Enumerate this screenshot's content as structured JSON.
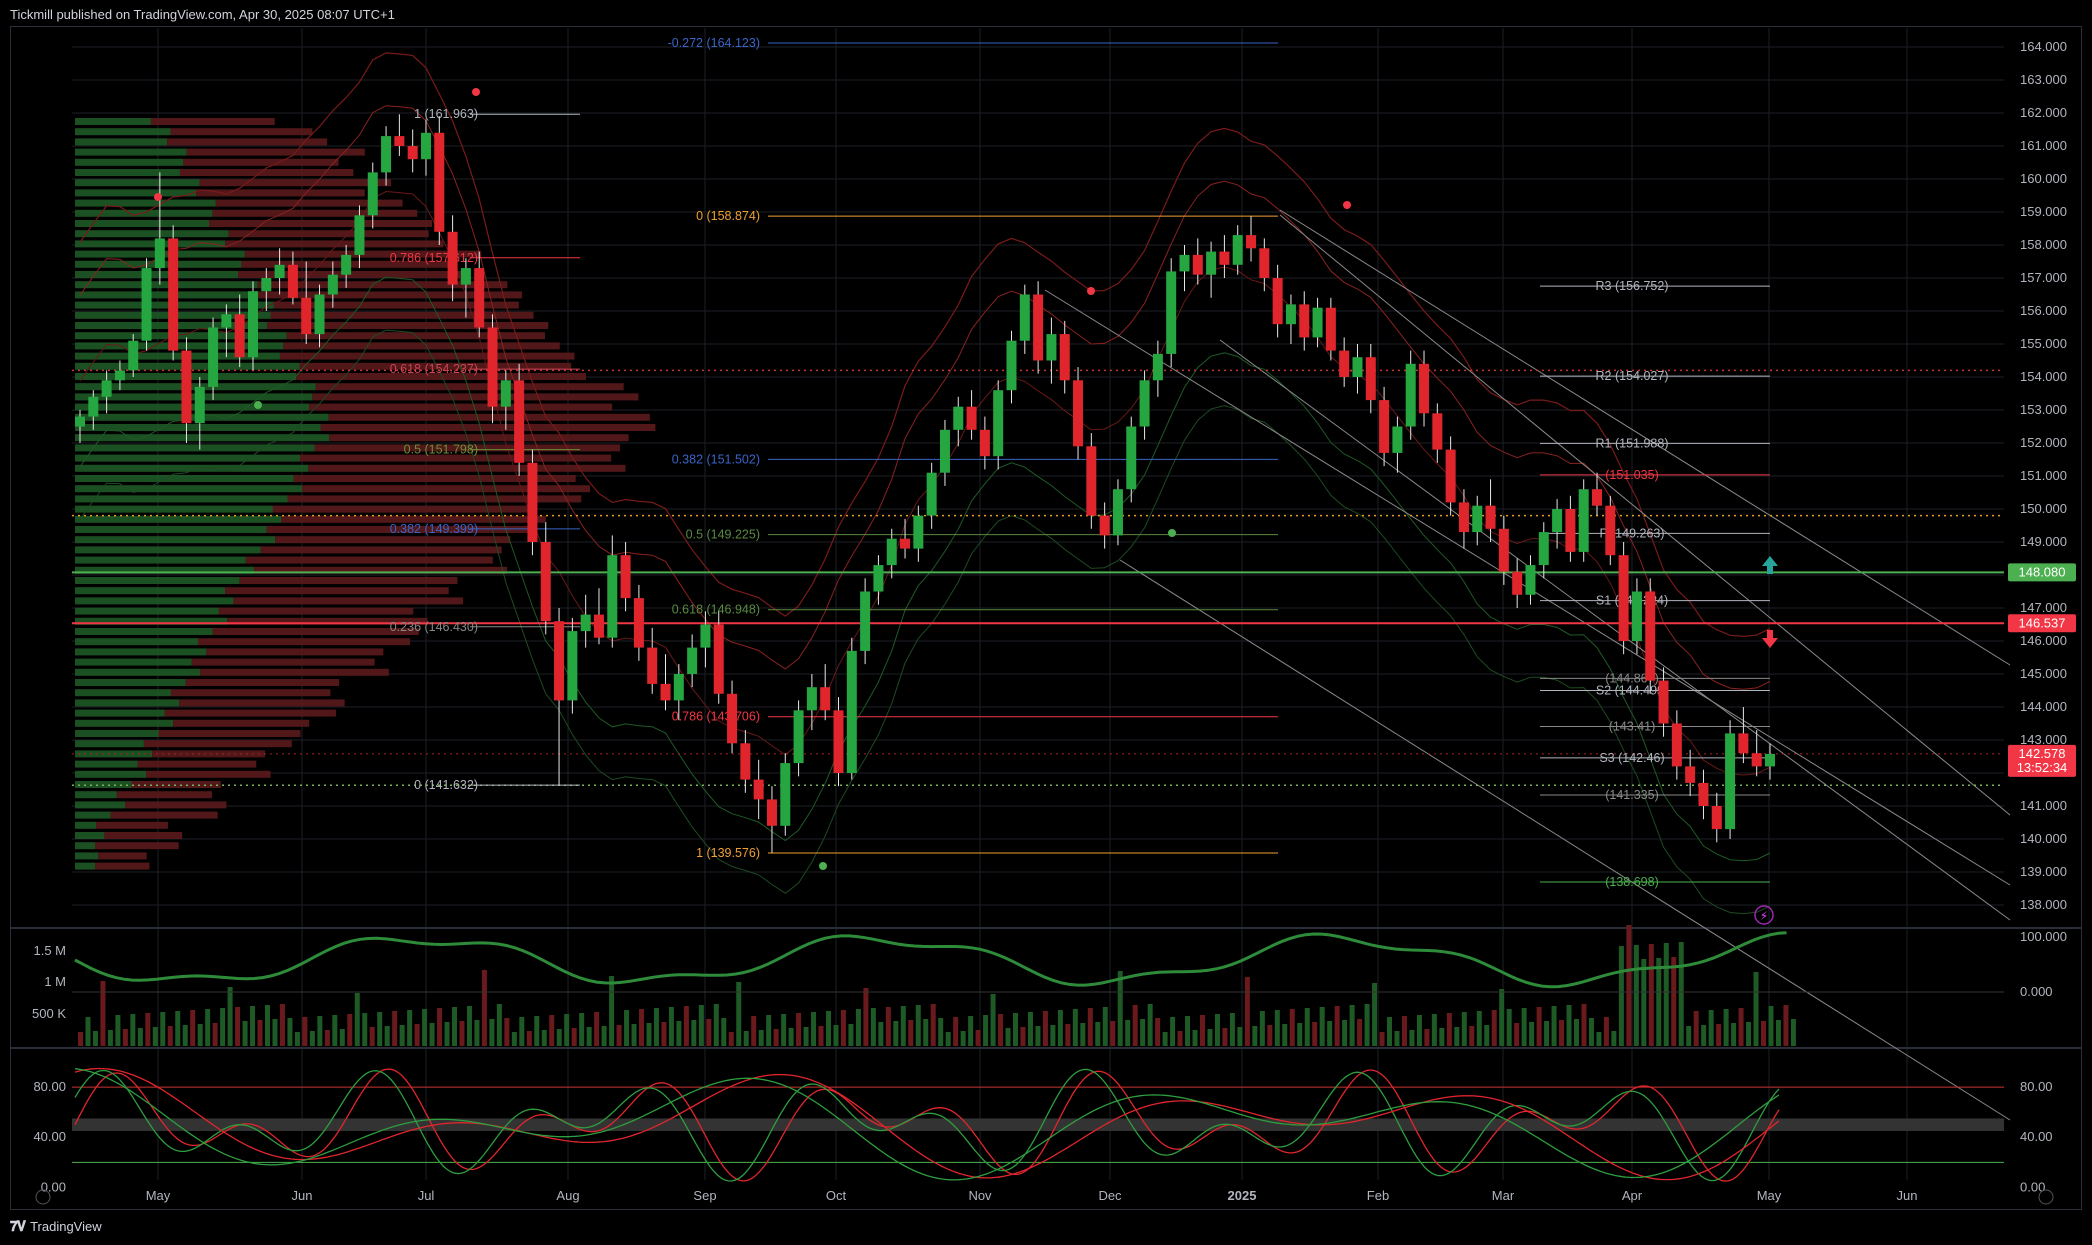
{
  "header": {
    "text": "Tickmill published on TradingView.com, Apr 30, 2025 08:07 UTC+1"
  },
  "footer": {
    "brand": "TradingView",
    "logo": "tv-logo-icon"
  },
  "colors": {
    "up": "#26a641",
    "down": "#e0262c",
    "bg": "#000000",
    "grid": "#1c1f26",
    "green_line": "#4caf50",
    "red_line": "#f23645",
    "orange": "#f0a030",
    "blue": "#3a64c8"
  },
  "chart_data": {
    "type": "candlestick",
    "price_axis": {
      "min": 138.0,
      "max": 164.0,
      "ticks": [
        "164.000",
        "163.000",
        "162.000",
        "161.000",
        "160.000",
        "159.000",
        "158.000",
        "157.000",
        "156.000",
        "155.000",
        "154.000",
        "153.000",
        "152.000",
        "151.000",
        "150.000",
        "149.000",
        "148.000",
        "147.000",
        "146.000",
        "145.000",
        "144.000",
        "143.000",
        "141.000",
        "140.000",
        "139.000",
        "138.000"
      ]
    },
    "time_axis": {
      "labels": [
        "May",
        "Jun",
        "Jul",
        "Aug",
        "Sep",
        "Oct",
        "Nov",
        "Dec",
        "2025",
        "Feb",
        "Mar",
        "Apr",
        "May",
        "Jun"
      ]
    },
    "price_tags": [
      {
        "value": "148.080",
        "price": 148.08,
        "color": "#4caf50"
      },
      {
        "value": "146.537",
        "price": 146.537,
        "color": "#f23645"
      },
      {
        "value": "142.578",
        "sub": "13:52:34",
        "price": 142.578,
        "color": "#f23645"
      }
    ],
    "fib_left": [
      {
        "label": "1 (161.963)",
        "price": 161.963
      },
      {
        "label": "0.786 (157.612)",
        "price": 157.612
      },
      {
        "label": "0.618 (154.237)",
        "price": 154.237
      },
      {
        "label": "0.5 (151.798)",
        "price": 151.798
      },
      {
        "label": "0.382 (149.399)",
        "price": 149.399
      },
      {
        "label": "0.236 (146.430)",
        "price": 146.43
      },
      {
        "label": "0 (141.632)",
        "price": 141.632
      }
    ],
    "fib_mid": [
      {
        "label": "-0.272 (164.123)",
        "price": 164.123
      },
      {
        "label": "0 (158.874)",
        "price": 158.874
      },
      {
        "label": "0.382 (151.502)",
        "price": 151.502
      },
      {
        "label": "0.5 (149.225)",
        "price": 149.225
      },
      {
        "label": "0.618 (146.948)",
        "price": 146.948
      },
      {
        "label": "0.786 (143.706)",
        "price": 143.706
      },
      {
        "label": "1 (139.576)",
        "price": 139.576
      }
    ],
    "pivots": [
      {
        "label": "R3 (156.752)",
        "price": 156.752
      },
      {
        "label": "R2 (154.027)",
        "price": 154.027
      },
      {
        "label": "R1 (151.988)",
        "price": 151.988
      },
      {
        "label": "(151.035)",
        "price": 151.035
      },
      {
        "label": "P (149.263)",
        "price": 149.263
      },
      {
        "label": "S1 (147.224)",
        "price": 147.224
      },
      {
        "label": "(144.867)",
        "price": 144.867
      },
      {
        "label": "S2 (144.499)",
        "price": 144.499
      },
      {
        "label": "(143.41)",
        "price": 143.41
      },
      {
        "label": "S3 (142.46)",
        "price": 142.46
      },
      {
        "label": "(141.335)",
        "price": 141.335
      },
      {
        "label": "(138.698)",
        "price": 138.698
      }
    ],
    "candles": [
      {
        "o": 152.5,
        "h": 153.0,
        "l": 152.0,
        "c": 152.8
      },
      {
        "o": 152.8,
        "h": 153.6,
        "l": 152.4,
        "c": 153.4
      },
      {
        "o": 153.4,
        "h": 154.2,
        "l": 152.9,
        "c": 153.9
      },
      {
        "o": 153.9,
        "h": 154.5,
        "l": 153.6,
        "c": 154.2
      },
      {
        "o": 154.2,
        "h": 155.3,
        "l": 154.0,
        "c": 155.1
      },
      {
        "o": 155.1,
        "h": 157.6,
        "l": 154.8,
        "c": 157.3
      },
      {
        "o": 157.3,
        "h": 160.2,
        "l": 156.8,
        "c": 158.2
      },
      {
        "o": 158.2,
        "h": 158.6,
        "l": 154.5,
        "c": 154.8
      },
      {
        "o": 154.8,
        "h": 155.2,
        "l": 152.0,
        "c": 152.6
      },
      {
        "o": 152.6,
        "h": 154.0,
        "l": 151.8,
        "c": 153.7
      },
      {
        "o": 153.7,
        "h": 155.8,
        "l": 153.3,
        "c": 155.5
      },
      {
        "o": 155.5,
        "h": 156.2,
        "l": 154.6,
        "c": 155.9
      },
      {
        "o": 155.9,
        "h": 156.5,
        "l": 154.3,
        "c": 154.6
      },
      {
        "o": 154.6,
        "h": 156.9,
        "l": 154.2,
        "c": 156.6
      },
      {
        "o": 156.6,
        "h": 157.3,
        "l": 156.0,
        "c": 157.0
      },
      {
        "o": 157.0,
        "h": 157.9,
        "l": 156.5,
        "c": 157.4
      },
      {
        "o": 157.4,
        "h": 157.8,
        "l": 156.2,
        "c": 156.4
      },
      {
        "o": 156.4,
        "h": 157.5,
        "l": 155.0,
        "c": 155.3
      },
      {
        "o": 155.3,
        "h": 156.8,
        "l": 154.9,
        "c": 156.5
      },
      {
        "o": 156.5,
        "h": 157.5,
        "l": 156.1,
        "c": 157.1
      },
      {
        "o": 157.1,
        "h": 158.0,
        "l": 156.7,
        "c": 157.7
      },
      {
        "o": 157.7,
        "h": 159.2,
        "l": 157.3,
        "c": 158.9
      },
      {
        "o": 158.9,
        "h": 160.5,
        "l": 158.5,
        "c": 160.2
      },
      {
        "o": 160.2,
        "h": 161.6,
        "l": 159.8,
        "c": 161.3
      },
      {
        "o": 161.3,
        "h": 161.96,
        "l": 160.7,
        "c": 161.0
      },
      {
        "o": 161.0,
        "h": 161.5,
        "l": 160.2,
        "c": 160.6
      },
      {
        "o": 160.6,
        "h": 161.8,
        "l": 160.1,
        "c": 161.4
      },
      {
        "o": 161.4,
        "h": 161.9,
        "l": 158.0,
        "c": 158.4
      },
      {
        "o": 158.4,
        "h": 158.9,
        "l": 156.3,
        "c": 156.8
      },
      {
        "o": 156.8,
        "h": 157.6,
        "l": 155.8,
        "c": 157.3
      },
      {
        "o": 157.3,
        "h": 157.8,
        "l": 155.2,
        "c": 155.5
      },
      {
        "o": 155.5,
        "h": 155.9,
        "l": 152.6,
        "c": 153.1
      },
      {
        "o": 153.1,
        "h": 154.2,
        "l": 152.4,
        "c": 153.9
      },
      {
        "o": 153.9,
        "h": 154.4,
        "l": 151.0,
        "c": 151.4
      },
      {
        "o": 151.4,
        "h": 151.8,
        "l": 148.6,
        "c": 149.0
      },
      {
        "o": 149.0,
        "h": 149.6,
        "l": 146.2,
        "c": 146.6
      },
      {
        "o": 146.6,
        "h": 147.0,
        "l": 141.63,
        "c": 144.2
      },
      {
        "o": 144.2,
        "h": 146.7,
        "l": 143.8,
        "c": 146.3
      },
      {
        "o": 146.3,
        "h": 147.4,
        "l": 145.8,
        "c": 146.8
      },
      {
        "o": 146.8,
        "h": 147.6,
        "l": 145.9,
        "c": 146.1
      },
      {
        "o": 146.1,
        "h": 149.2,
        "l": 145.8,
        "c": 148.6
      },
      {
        "o": 148.6,
        "h": 149.0,
        "l": 146.9,
        "c": 147.3
      },
      {
        "o": 147.3,
        "h": 147.7,
        "l": 145.4,
        "c": 145.8
      },
      {
        "o": 145.8,
        "h": 146.4,
        "l": 144.4,
        "c": 144.7
      },
      {
        "o": 144.7,
        "h": 145.6,
        "l": 143.9,
        "c": 144.2
      },
      {
        "o": 144.2,
        "h": 145.3,
        "l": 143.6,
        "c": 145.0
      },
      {
        "o": 145.0,
        "h": 146.2,
        "l": 144.6,
        "c": 145.8
      },
      {
        "o": 145.8,
        "h": 146.9,
        "l": 145.2,
        "c": 146.5
      },
      {
        "o": 146.5,
        "h": 146.9,
        "l": 144.1,
        "c": 144.4
      },
      {
        "o": 144.4,
        "h": 144.8,
        "l": 142.6,
        "c": 142.9
      },
      {
        "o": 142.9,
        "h": 143.3,
        "l": 141.4,
        "c": 141.8
      },
      {
        "o": 141.8,
        "h": 142.4,
        "l": 140.6,
        "c": 141.2
      },
      {
        "o": 141.2,
        "h": 141.6,
        "l": 139.58,
        "c": 140.4
      },
      {
        "o": 140.4,
        "h": 142.6,
        "l": 140.1,
        "c": 142.3
      },
      {
        "o": 142.3,
        "h": 144.2,
        "l": 141.9,
        "c": 143.9
      },
      {
        "o": 143.9,
        "h": 145.0,
        "l": 143.3,
        "c": 144.6
      },
      {
        "o": 144.6,
        "h": 145.3,
        "l": 143.6,
        "c": 143.9
      },
      {
        "o": 143.9,
        "h": 144.3,
        "l": 141.6,
        "c": 142.0
      },
      {
        "o": 142.0,
        "h": 146.1,
        "l": 141.8,
        "c": 145.7
      },
      {
        "o": 145.7,
        "h": 147.9,
        "l": 145.3,
        "c": 147.5
      },
      {
        "o": 147.5,
        "h": 148.6,
        "l": 147.1,
        "c": 148.3
      },
      {
        "o": 148.3,
        "h": 149.4,
        "l": 147.9,
        "c": 149.1
      },
      {
        "o": 149.1,
        "h": 149.7,
        "l": 148.5,
        "c": 148.8
      },
      {
        "o": 148.8,
        "h": 150.1,
        "l": 148.4,
        "c": 149.8
      },
      {
        "o": 149.8,
        "h": 151.4,
        "l": 149.4,
        "c": 151.1
      },
      {
        "o": 151.1,
        "h": 152.7,
        "l": 150.7,
        "c": 152.4
      },
      {
        "o": 152.4,
        "h": 153.4,
        "l": 151.9,
        "c": 153.1
      },
      {
        "o": 153.1,
        "h": 153.6,
        "l": 152.1,
        "c": 152.4
      },
      {
        "o": 152.4,
        "h": 152.8,
        "l": 151.2,
        "c": 151.6
      },
      {
        "o": 151.6,
        "h": 153.9,
        "l": 151.2,
        "c": 153.6
      },
      {
        "o": 153.6,
        "h": 155.4,
        "l": 153.2,
        "c": 155.1
      },
      {
        "o": 155.1,
        "h": 156.8,
        "l": 154.7,
        "c": 156.5
      },
      {
        "o": 156.5,
        "h": 156.9,
        "l": 154.1,
        "c": 154.5
      },
      {
        "o": 154.5,
        "h": 155.8,
        "l": 153.8,
        "c": 155.3
      },
      {
        "o": 155.3,
        "h": 155.7,
        "l": 153.5,
        "c": 153.9
      },
      {
        "o": 153.9,
        "h": 154.3,
        "l": 151.5,
        "c": 151.9
      },
      {
        "o": 151.9,
        "h": 152.3,
        "l": 149.4,
        "c": 149.8
      },
      {
        "o": 149.8,
        "h": 150.2,
        "l": 148.8,
        "c": 149.2
      },
      {
        "o": 149.2,
        "h": 150.9,
        "l": 148.9,
        "c": 150.6
      },
      {
        "o": 150.6,
        "h": 152.8,
        "l": 150.2,
        "c": 152.5
      },
      {
        "o": 152.5,
        "h": 154.2,
        "l": 152.1,
        "c": 153.9
      },
      {
        "o": 153.9,
        "h": 155.1,
        "l": 153.4,
        "c": 154.7
      },
      {
        "o": 154.7,
        "h": 157.6,
        "l": 154.3,
        "c": 157.2
      },
      {
        "o": 157.2,
        "h": 158.0,
        "l": 156.6,
        "c": 157.7
      },
      {
        "o": 157.7,
        "h": 158.2,
        "l": 156.8,
        "c": 157.1
      },
      {
        "o": 157.1,
        "h": 158.1,
        "l": 156.4,
        "c": 157.8
      },
      {
        "o": 157.8,
        "h": 158.3,
        "l": 157.0,
        "c": 157.4
      },
      {
        "o": 157.4,
        "h": 158.6,
        "l": 157.1,
        "c": 158.3
      },
      {
        "o": 158.3,
        "h": 158.87,
        "l": 157.5,
        "c": 157.9
      },
      {
        "o": 157.9,
        "h": 158.2,
        "l": 156.6,
        "c": 157.0
      },
      {
        "o": 157.0,
        "h": 157.4,
        "l": 155.2,
        "c": 155.6
      },
      {
        "o": 155.6,
        "h": 156.5,
        "l": 155.0,
        "c": 156.2
      },
      {
        "o": 156.2,
        "h": 156.6,
        "l": 154.8,
        "c": 155.2
      },
      {
        "o": 155.2,
        "h": 156.4,
        "l": 154.9,
        "c": 156.1
      },
      {
        "o": 156.1,
        "h": 156.4,
        "l": 154.5,
        "c": 154.8
      },
      {
        "o": 154.8,
        "h": 155.2,
        "l": 153.7,
        "c": 154.0
      },
      {
        "o": 154.0,
        "h": 155.0,
        "l": 153.5,
        "c": 154.6
      },
      {
        "o": 154.6,
        "h": 155.0,
        "l": 152.9,
        "c": 153.3
      },
      {
        "o": 153.3,
        "h": 153.7,
        "l": 151.3,
        "c": 151.7
      },
      {
        "o": 151.7,
        "h": 152.8,
        "l": 151.1,
        "c": 152.5
      },
      {
        "o": 152.5,
        "h": 154.8,
        "l": 152.1,
        "c": 154.4
      },
      {
        "o": 154.4,
        "h": 154.8,
        "l": 152.5,
        "c": 152.9
      },
      {
        "o": 152.9,
        "h": 153.2,
        "l": 151.4,
        "c": 151.8
      },
      {
        "o": 151.8,
        "h": 152.2,
        "l": 149.8,
        "c": 150.2
      },
      {
        "o": 150.2,
        "h": 150.6,
        "l": 148.8,
        "c": 149.3
      },
      {
        "o": 149.3,
        "h": 150.4,
        "l": 148.9,
        "c": 150.1
      },
      {
        "o": 150.1,
        "h": 150.9,
        "l": 149.0,
        "c": 149.4
      },
      {
        "o": 149.4,
        "h": 149.8,
        "l": 147.7,
        "c": 148.1
      },
      {
        "o": 148.1,
        "h": 148.5,
        "l": 147.0,
        "c": 147.4
      },
      {
        "o": 147.4,
        "h": 148.6,
        "l": 147.1,
        "c": 148.3
      },
      {
        "o": 148.3,
        "h": 149.6,
        "l": 147.9,
        "c": 149.3
      },
      {
        "o": 149.3,
        "h": 150.3,
        "l": 148.8,
        "c": 150.0
      },
      {
        "o": 150.0,
        "h": 150.4,
        "l": 148.4,
        "c": 148.7
      },
      {
        "o": 148.7,
        "h": 150.9,
        "l": 148.4,
        "c": 150.6
      },
      {
        "o": 150.6,
        "h": 151.1,
        "l": 149.8,
        "c": 150.1
      },
      {
        "o": 150.1,
        "h": 150.4,
        "l": 148.3,
        "c": 148.6
      },
      {
        "o": 148.6,
        "h": 149.0,
        "l": 145.6,
        "c": 146.0
      },
      {
        "o": 146.0,
        "h": 147.9,
        "l": 145.6,
        "c": 147.5
      },
      {
        "o": 147.5,
        "h": 147.9,
        "l": 144.4,
        "c": 144.8
      },
      {
        "o": 144.8,
        "h": 145.2,
        "l": 143.1,
        "c": 143.5
      },
      {
        "o": 143.5,
        "h": 143.9,
        "l": 141.8,
        "c": 142.2
      },
      {
        "o": 142.2,
        "h": 142.7,
        "l": 141.3,
        "c": 141.7
      },
      {
        "o": 141.7,
        "h": 142.1,
        "l": 140.6,
        "c": 141.0
      },
      {
        "o": 141.0,
        "h": 141.4,
        "l": 139.9,
        "c": 140.3
      },
      {
        "o": 140.3,
        "h": 143.6,
        "l": 140.0,
        "c": 143.2
      },
      {
        "o": 143.2,
        "h": 144.0,
        "l": 142.3,
        "c": 142.6
      },
      {
        "o": 142.6,
        "h": 143.3,
        "l": 141.9,
        "c": 142.2
      },
      {
        "o": 142.2,
        "h": 142.9,
        "l": 141.8,
        "c": 142.578
      }
    ],
    "volume_axis": {
      "ticks": [
        "1.5 M",
        "1 M",
        "500 K"
      ]
    },
    "volume_osc_axis": {
      "ticks": [
        "100.000",
        "0.000"
      ]
    },
    "stoch_axis": {
      "ticks": [
        "80.00",
        "40.00",
        "0.00"
      ]
    },
    "stoch_levels": [
      80,
      20
    ]
  }
}
